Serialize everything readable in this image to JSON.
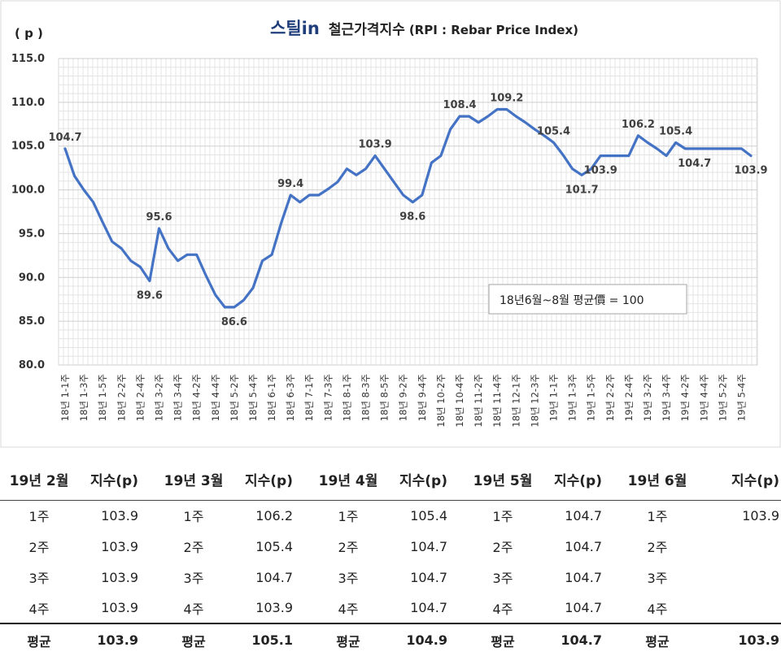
{
  "chart_data": {
    "type": "line",
    "title_logo": "스틸in",
    "title": "철근가격지수",
    "title_sub": "(RPI : Rebar Price Index)",
    "ylabel": "( p )",
    "ylim": [
      80,
      115
    ],
    "yticks": [
      "80.0",
      "85.0",
      "90.0",
      "95.0",
      "100.0",
      "105.0",
      "110.0",
      "115.0"
    ],
    "grid": true,
    "line_color": "#4472c4",
    "note": "18년6월~8월 평균價 = 100",
    "x_labels": [
      "18년 1-1주",
      "18년 1-3주",
      "18년 1-5주",
      "18년 2-2주",
      "18년 2-4주",
      "18년 3-2주",
      "18년 3-4주",
      "18년 4-2주",
      "18년 4-4주",
      "18년 5-2주",
      "18년 5-4주",
      "18년 6-1주",
      "18년 6-3주",
      "18년 7-1주",
      "18년 7-3주",
      "18년 8-1주",
      "18년 8-3주",
      "18년 8-5주",
      "18년 9-2주",
      "18년 9-4주",
      "18년 10-2주",
      "18년 10-4주",
      "18년 11-2주",
      "18년 11-4주",
      "18년 12-1주",
      "18년 12-3주",
      "19년 1-1주",
      "19년 1-3주",
      "19년 1-5주",
      "19년 2-2주",
      "19년 2-4주",
      "19년 3-2주",
      "19년 3-4주",
      "19년 4-2주",
      "19년 4-4주",
      "19년 5-2주",
      "19년 5-4주"
    ],
    "values": [
      104.7,
      101.6,
      100.0,
      98.6,
      96.3,
      94.1,
      93.3,
      91.9,
      91.2,
      89.6,
      95.6,
      93.3,
      91.9,
      92.6,
      92.6,
      90.2,
      88.0,
      86.6,
      86.6,
      87.4,
      88.8,
      91.9,
      92.6,
      96.2,
      99.4,
      98.6,
      99.4,
      99.4,
      100.1,
      100.9,
      102.4,
      101.7,
      102.4,
      103.9,
      102.4,
      100.9,
      99.4,
      98.6,
      99.4,
      103.1,
      103.9,
      106.9,
      108.4,
      108.4,
      107.7,
      108.4,
      109.2,
      109.2,
      108.4,
      107.7,
      106.9,
      106.2,
      105.4,
      104.0,
      102.4,
      101.7,
      102.4,
      103.9,
      103.9,
      103.9,
      103.9,
      106.2,
      105.4,
      104.7,
      103.9,
      105.4,
      104.7,
      104.7,
      104.7,
      104.7,
      104.7,
      104.7,
      104.7,
      103.9
    ],
    "data_labels": [
      {
        "index": 0,
        "text": "104.7"
      },
      {
        "index": 9,
        "text": "89.6"
      },
      {
        "index": 10,
        "text": "95.6"
      },
      {
        "index": 18,
        "text": "86.6"
      },
      {
        "index": 24,
        "text": "99.4"
      },
      {
        "index": 33,
        "text": "103.9"
      },
      {
        "index": 37,
        "text": "98.6"
      },
      {
        "index": 42,
        "text": "108.4"
      },
      {
        "index": 47,
        "text": "109.2"
      },
      {
        "index": 52,
        "text": "105.4"
      },
      {
        "index": 55,
        "text": "101.7"
      },
      {
        "index": 57,
        "text": "103.9"
      },
      {
        "index": 61,
        "text": "106.2"
      },
      {
        "index": 65,
        "text": "105.4"
      },
      {
        "index": 67,
        "text": "104.7"
      },
      {
        "index": 73,
        "text": "103.9"
      }
    ]
  },
  "table": {
    "headers": [
      {
        "month": "19년 2월",
        "idx": "지수(p)"
      },
      {
        "month": "19년 3월",
        "idx": "지수(p)"
      },
      {
        "month": "19년 4월",
        "idx": "지수(p)"
      },
      {
        "month": "19년 5월",
        "idx": "지수(p)"
      },
      {
        "month": "19년 6월",
        "idx": "지수(p)"
      }
    ],
    "rows": [
      [
        {
          "week": "1주",
          "value": "103.9"
        },
        {
          "week": "1주",
          "value": "106.2"
        },
        {
          "week": "1주",
          "value": "105.4"
        },
        {
          "week": "1주",
          "value": "104.7"
        },
        {
          "week": "1주",
          "value": "103.9"
        }
      ],
      [
        {
          "week": "2주",
          "value": "103.9"
        },
        {
          "week": "2주",
          "value": "105.4"
        },
        {
          "week": "2주",
          "value": "104.7"
        },
        {
          "week": "2주",
          "value": "104.7"
        },
        {
          "week": "2주",
          "value": ""
        }
      ],
      [
        {
          "week": "3주",
          "value": "103.9"
        },
        {
          "week": "3주",
          "value": "104.7"
        },
        {
          "week": "3주",
          "value": "104.7"
        },
        {
          "week": "3주",
          "value": "104.7"
        },
        {
          "week": "3주",
          "value": ""
        }
      ],
      [
        {
          "week": "4주",
          "value": "103.9"
        },
        {
          "week": "4주",
          "value": "103.9"
        },
        {
          "week": "4주",
          "value": "104.7"
        },
        {
          "week": "4주",
          "value": "104.7"
        },
        {
          "week": "4주",
          "value": ""
        }
      ]
    ],
    "averages": [
      {
        "label": "평균",
        "value": "103.9"
      },
      {
        "label": "평균",
        "value": "105.1"
      },
      {
        "label": "평균",
        "value": "104.9"
      },
      {
        "label": "평균",
        "value": "104.7"
      },
      {
        "label": "평균",
        "value": "103.9"
      }
    ]
  }
}
